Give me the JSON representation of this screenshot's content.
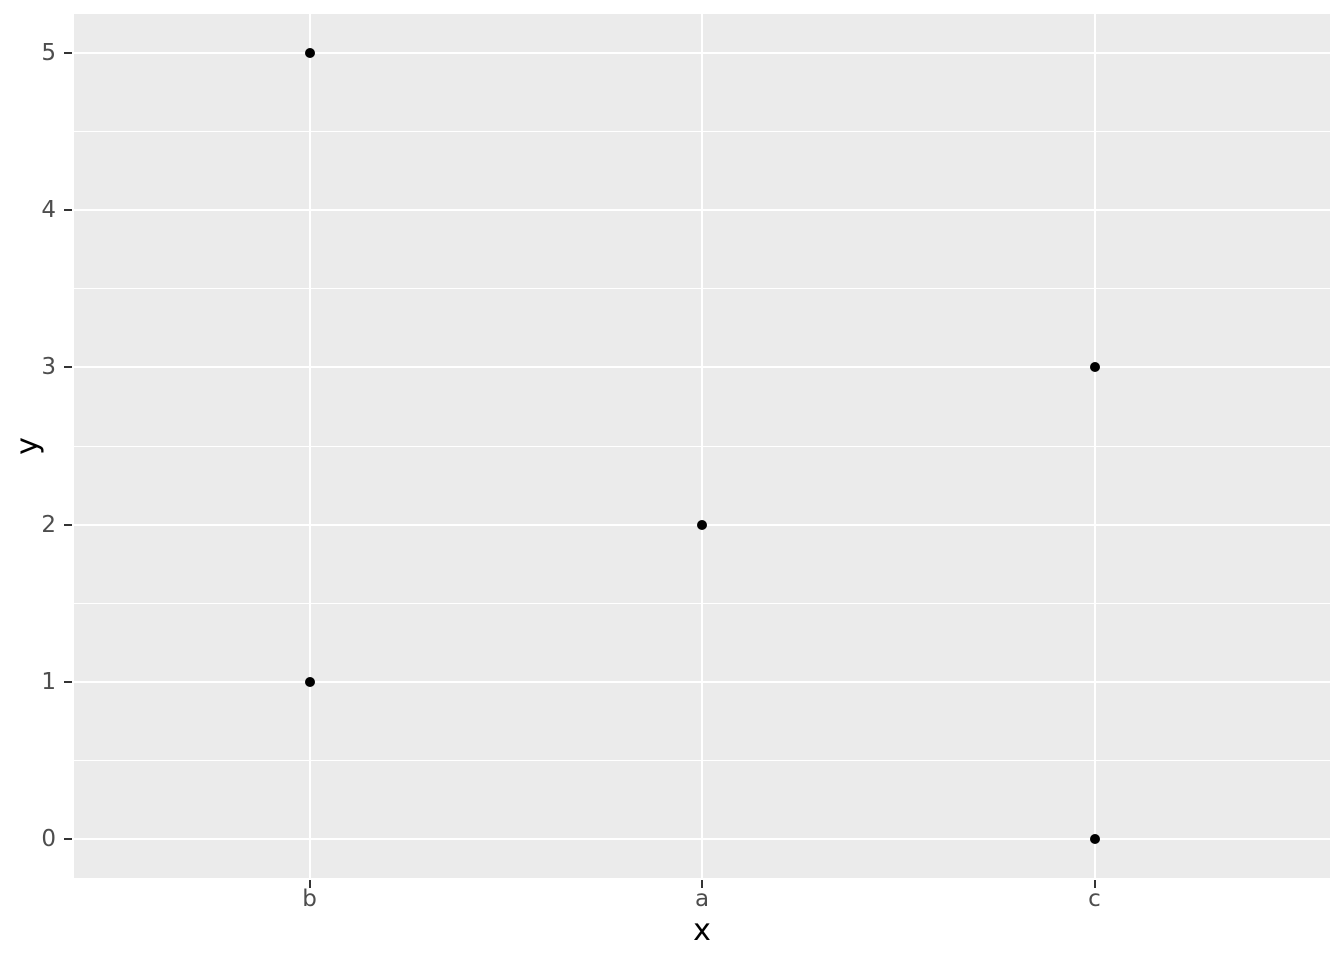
{
  "chart_data": {
    "type": "scatter",
    "title": "",
    "xlabel": "x",
    "ylabel": "y",
    "x_type": "categorical",
    "categories": [
      "b",
      "a",
      "c"
    ],
    "points": [
      {
        "x": "b",
        "y": 5
      },
      {
        "x": "b",
        "y": 1
      },
      {
        "x": "a",
        "y": 2
      },
      {
        "x": "c",
        "y": 3
      },
      {
        "x": "c",
        "y": 0
      }
    ],
    "y_ticks": [
      0,
      1,
      2,
      3,
      4,
      5
    ],
    "y_tick_labels": [
      "0",
      "1",
      "2",
      "3",
      "4",
      "5"
    ],
    "y_minor_ticks": [
      0.5,
      1.5,
      2.5,
      3.5,
      4.5
    ],
    "x_tick_labels": [
      "b",
      "a",
      "c"
    ],
    "ylim": [
      -0.25,
      5.25
    ],
    "grid": "major-and-minor-horizontal, major-vertical",
    "legend": "none",
    "style": "ggplot2-grey-theme",
    "colors": {
      "panel_background": "#EBEBEB",
      "grid_major": "#FFFFFF",
      "grid_minor": "#FFFFFF",
      "tick_label": "#4D4D4D",
      "tick_mark": "#333333",
      "axis_title": "#000000",
      "point": "#000000"
    }
  }
}
